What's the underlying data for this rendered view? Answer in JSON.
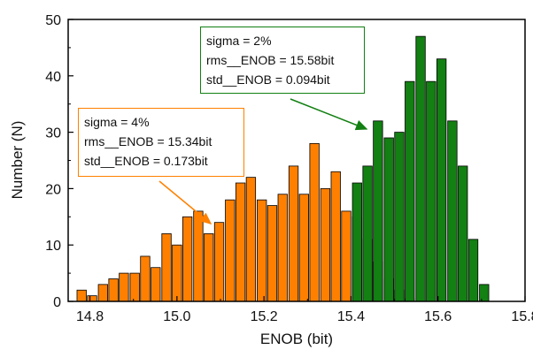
{
  "chart_data": {
    "type": "bar",
    "xlabel": "ENOB (bit)",
    "ylabel": "Number (N)",
    "xlim": [
      14.75,
      15.8
    ],
    "ylim": [
      0,
      50
    ],
    "xticks": [
      "14.8",
      "15.0",
      "15.2",
      "15.4",
      "15.6",
      "15.8"
    ],
    "yticks": [
      "0",
      "10",
      "20",
      "30",
      "40",
      "50"
    ],
    "grid": false,
    "legend": "none",
    "series": [
      {
        "color": "#ff8000",
        "x": [
          14.781,
          14.805,
          14.83,
          14.854,
          14.878,
          14.903,
          14.927,
          14.951,
          14.976,
          15.0,
          15.024,
          15.049,
          15.073,
          15.097,
          15.122,
          15.146,
          15.17,
          15.195,
          15.219,
          15.243,
          15.268,
          15.292,
          15.316,
          15.341,
          15.365,
          15.389,
          15.414,
          15.438,
          15.462,
          15.487,
          15.511,
          15.535,
          15.56,
          15.584,
          15.608,
          15.633
        ],
        "values": [
          2,
          1,
          3,
          4,
          5,
          5,
          8,
          6,
          12,
          10,
          15,
          16,
          12,
          14,
          18,
          21,
          22,
          18,
          17,
          19,
          24,
          19,
          28,
          20,
          23,
          16,
          15,
          11,
          7,
          4,
          2,
          0.5,
          0,
          0,
          0,
          0
        ]
      },
      {
        "color": "#128012",
        "x": [
          15.414,
          15.438,
          15.462,
          15.487,
          15.511,
          15.535,
          15.56,
          15.584,
          15.608,
          15.633,
          15.657,
          15.681,
          15.706,
          15.73
        ],
        "values": [
          21,
          24,
          32,
          29,
          30,
          39,
          47,
          39,
          43,
          32,
          24,
          11,
          3,
          0
        ]
      }
    ],
    "annotations": [
      {
        "lines": [
          "sigma = 2%",
          "rms__ENOB = 15.58bit",
          "std__ENOB = 0.094bit"
        ],
        "color": "#128012"
      },
      {
        "lines": [
          "sigma = 4%",
          "rms__ENOB = 15.34bit",
          "std__ENOB = 0.173bit"
        ],
        "color": "#ff8000"
      }
    ]
  }
}
